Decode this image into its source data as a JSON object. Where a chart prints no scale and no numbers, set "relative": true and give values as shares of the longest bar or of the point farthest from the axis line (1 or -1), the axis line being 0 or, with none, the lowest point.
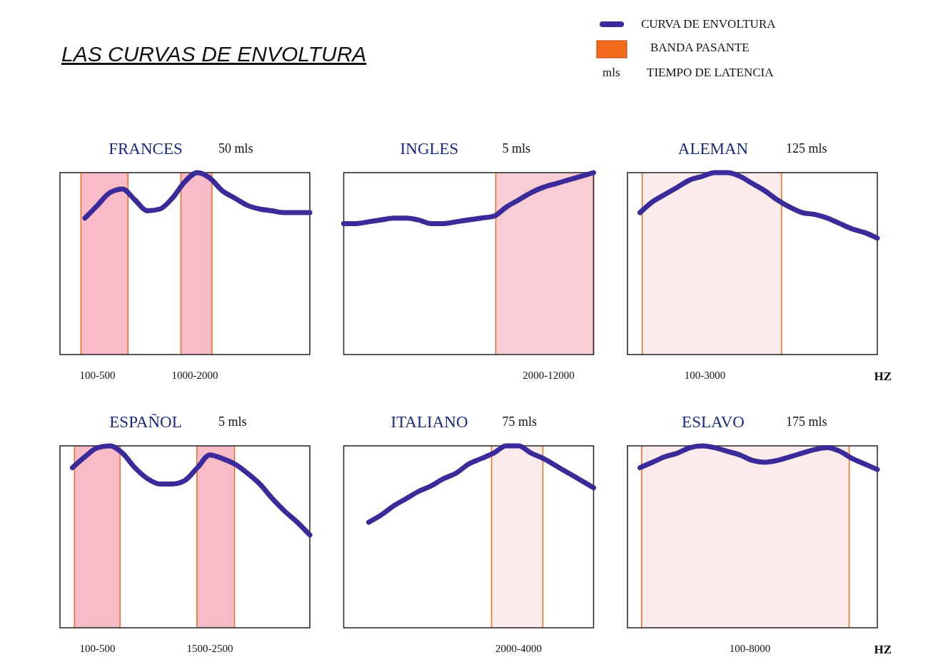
{
  "chart_data": [
    {
      "type": "other",
      "title": "LAS CURVAS DE ENVOLTURA",
      "annotations": [
        "CURVA DE ENVOLTURA",
        "BANDA PASANTE",
        "mls",
        "TIEMPO DE LATENCIA"
      ],
      "colors": [
        "#3a2a9a",
        "#f26a1b"
      ]
    },
    {
      "type": "line",
      "title": "FRANCES",
      "subtitle": "50 mls",
      "relative": true,
      "annotations": [
        "100-500",
        "1000-2000"
      ],
      "categories": [
        null,
        null,
        null,
        null,
        null,
        null,
        null,
        null,
        null,
        null,
        null,
        null,
        null,
        null,
        null,
        null,
        null,
        null,
        null,
        null,
        null
      ],
      "series": [
        {
          "color": "#3a2a9a",
          "values": [
            null,
            null,
            0.75,
            0.82,
            0.89,
            0.91,
            0.85,
            0.79,
            0.8,
            0.86,
            0.95,
            1,
            0.97,
            0.9,
            0.86,
            0.82,
            0.8,
            0.79,
            0.78,
            0.78,
            0.78
          ]
        }
      ]
    },
    {
      "type": "line",
      "title": "INGLES",
      "subtitle": "5 mls",
      "relative": true,
      "annotations": [
        "2000-12000"
      ],
      "categories": [
        null,
        null,
        null,
        null,
        null,
        null,
        null,
        null,
        null,
        null,
        null,
        null,
        null,
        null,
        null,
        null,
        null,
        null,
        null,
        null,
        null
      ],
      "series": [
        {
          "color": "#3a2a9a",
          "values": [
            0.72,
            0.72,
            0.73,
            0.74,
            0.75,
            0.75,
            0.74,
            0.72,
            0.72,
            0.73,
            0.74,
            0.75,
            0.76,
            0.81,
            0.85,
            0.89,
            0.92,
            0.94,
            0.96,
            0.98,
            1
          ]
        }
      ]
    },
    {
      "type": "line",
      "title": "ALEMAN",
      "subtitle": "125 mls",
      "relative": true,
      "annotations": [
        "100-3000",
        "HZ"
      ],
      "categories": [
        null,
        null,
        null,
        null,
        null,
        null,
        null,
        null,
        null,
        null,
        null,
        null,
        null,
        null,
        null,
        null,
        null,
        null,
        null,
        null,
        null
      ],
      "series": [
        {
          "color": "#3a2a9a",
          "values": [
            null,
            0.78,
            0.84,
            0.88,
            0.92,
            0.96,
            0.98,
            1,
            1,
            0.98,
            0.94,
            0.9,
            0.85,
            0.81,
            0.78,
            0.77,
            0.75,
            0.72,
            0.69,
            0.67,
            0.64
          ]
        }
      ]
    },
    {
      "type": "line",
      "title": "ESPAÑOL",
      "subtitle": "5 mls",
      "relative": true,
      "annotations": [
        "100-500",
        "1500-2500"
      ],
      "categories": [
        null,
        null,
        null,
        null,
        null,
        null,
        null,
        null,
        null,
        null,
        null,
        null,
        null,
        null,
        null,
        null,
        null,
        null,
        null,
        null,
        null
      ],
      "series": [
        {
          "color": "#3a2a9a",
          "values": [
            null,
            0.88,
            0.94,
            0.99,
            1,
            0.96,
            0.88,
            0.82,
            0.79,
            0.79,
            0.81,
            0.88,
            0.95,
            0.93,
            0.9,
            0.85,
            0.79,
            0.71,
            0.64,
            0.58,
            0.51
          ]
        }
      ]
    },
    {
      "type": "line",
      "title": "ITALIANO",
      "subtitle": "75 mls",
      "relative": true,
      "annotations": [
        "2000-4000"
      ],
      "categories": [
        null,
        null,
        null,
        null,
        null,
        null,
        null,
        null,
        null,
        null,
        null,
        null,
        null,
        null,
        null,
        null,
        null,
        null,
        null,
        null,
        null
      ],
      "series": [
        {
          "color": "#3a2a9a",
          "values": [
            null,
            null,
            0.58,
            0.62,
            0.67,
            0.71,
            0.75,
            0.78,
            0.82,
            0.85,
            0.9,
            0.93,
            0.96,
            1,
            1,
            0.96,
            0.93,
            0.89,
            0.85,
            0.81,
            0.77
          ]
        }
      ]
    },
    {
      "type": "line",
      "title": "ESLAVO",
      "subtitle": "175 mls",
      "relative": true,
      "annotations": [
        "100-8000",
        "HZ"
      ],
      "categories": [
        null,
        null,
        null,
        null,
        null,
        null,
        null,
        null,
        null,
        null,
        null,
        null,
        null,
        null,
        null,
        null,
        null,
        null,
        null,
        null,
        null
      ],
      "series": [
        {
          "color": "#3a2a9a",
          "values": [
            null,
            0.88,
            0.91,
            0.94,
            0.96,
            0.99,
            1,
            0.99,
            0.97,
            0.95,
            0.92,
            0.91,
            0.92,
            0.94,
            0.96,
            0.98,
            0.99,
            0.97,
            0.93,
            0.9,
            0.87
          ]
        }
      ]
    }
  ]
}
